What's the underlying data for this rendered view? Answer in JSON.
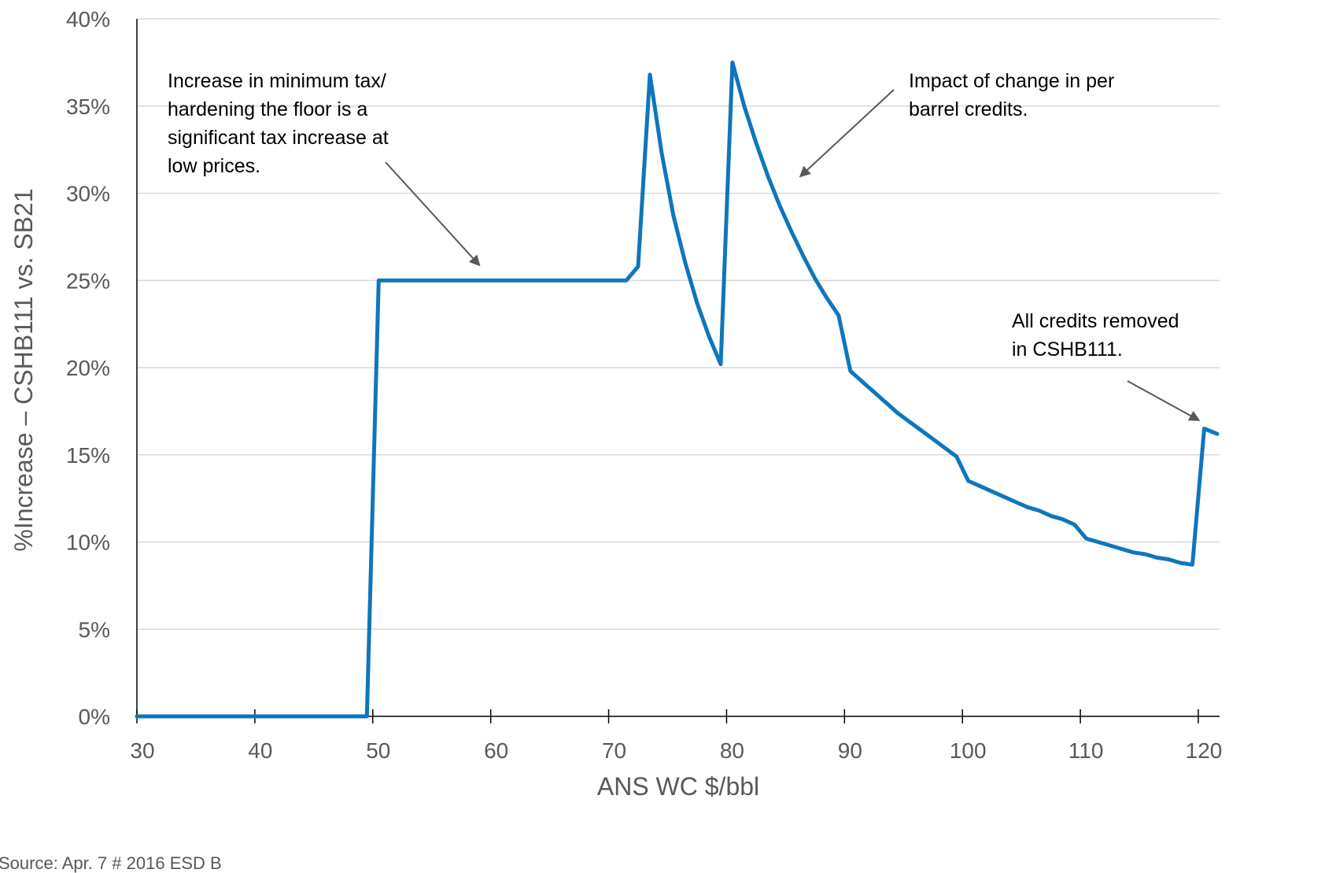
{
  "chart_data": {
    "type": "line",
    "title": "",
    "xlabel": "ANS WC $/bbl",
    "ylabel": "%Increase – CSHB111 vs. SB21",
    "xlim": [
      30,
      121.8
    ],
    "ylim": [
      0,
      40
    ],
    "x_ticks": [
      30,
      40,
      50,
      60,
      70,
      80,
      90,
      100,
      110,
      120
    ],
    "x_tick_labels": [
      "30",
      "40",
      "50",
      "60",
      "70",
      "80",
      "90",
      "100",
      "110",
      "120"
    ],
    "y_ticks": [
      0,
      5,
      10,
      15,
      20,
      25,
      30,
      35,
      40
    ],
    "y_tick_labels": [
      "0%",
      "5%",
      "10%",
      "15%",
      "20%",
      "25%",
      "30%",
      "35%",
      "40%"
    ],
    "grid": true,
    "color": "#0E76BC",
    "series": [
      {
        "x": [
          30,
          49.5,
          50.5,
          71.5,
          72.5,
          73.5,
          74.5,
          75.5,
          76.5,
          77.5,
          78.5,
          79.5,
          80.5,
          81.5,
          82.5,
          83.5,
          84.5,
          85.5,
          86.5,
          87.5,
          88.5,
          89.5,
          90.5,
          91.5,
          92.5,
          93.5,
          94.5,
          95.5,
          96.5,
          97.5,
          98.5,
          99.5,
          100.5,
          101.5,
          102.5,
          103.5,
          104.5,
          105.5,
          106.5,
          107.5,
          108.5,
          109.5,
          110.5,
          111.5,
          112.5,
          113.5,
          114.5,
          115.5,
          116.5,
          117.5,
          118.5,
          119.5,
          120.5,
          121.6
        ],
        "y": [
          0,
          0,
          25,
          25,
          25.8,
          36.8,
          32.3,
          28.7,
          26.0,
          23.7,
          21.8,
          20.2,
          37.5,
          35.0,
          32.9,
          31.0,
          29.3,
          27.8,
          26.4,
          25.1,
          24.0,
          23.0,
          19.8,
          19.2,
          18.6,
          18.0,
          17.4,
          16.9,
          16.4,
          15.9,
          15.4,
          14.9,
          13.5,
          13.2,
          12.9,
          12.6,
          12.3,
          12.0,
          11.8,
          11.5,
          11.3,
          11.0,
          10.2,
          10.0,
          9.8,
          9.6,
          9.4,
          9.3,
          9.1,
          9.0,
          8.8,
          8.7,
          16.5,
          16.2
        ]
      }
    ],
    "annotations": [
      {
        "lines": [
          "Increase in minimum tax/",
          "hardening the floor is a",
          "significant tax increase at",
          "low prices."
        ],
        "arrow_to": [
          59,
          25.9
        ]
      },
      {
        "lines": [
          "Impact of change in per",
          "barrel credits."
        ],
        "arrow_to": [
          86.3,
          31.0
        ]
      },
      {
        "lines": [
          "All credits removed",
          "in CSHB111."
        ],
        "arrow_to": [
          120.0,
          17.0
        ]
      }
    ]
  },
  "footer": {
    "source_text": "Source: Apr. 7 # 2016 ESD B"
  }
}
